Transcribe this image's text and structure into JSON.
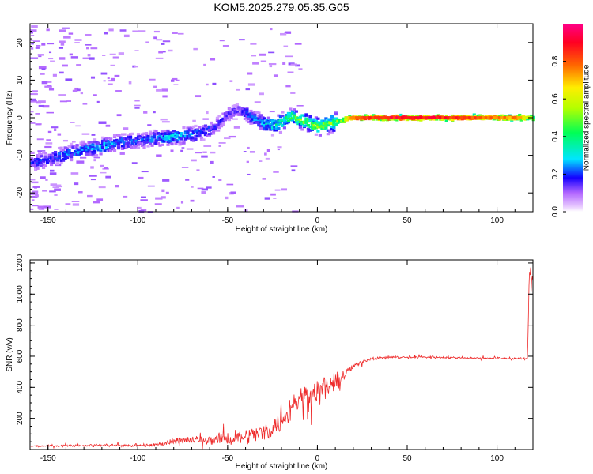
{
  "title": "KOM5.2025.279.05.35.G05",
  "chart_data": [
    {
      "type": "heatmap",
      "xlabel": "Height of straight line (km)",
      "ylabel": "Frequency (Hz)",
      "xlim": [
        -160,
        120
      ],
      "ylim": [
        -25,
        25
      ],
      "xticks": [
        -150,
        -100,
        -50,
        0,
        50,
        100
      ],
      "yticks": [
        -20,
        -10,
        0,
        10,
        20
      ],
      "colorbar": {
        "label": "Normalized spectral amplitude",
        "range": [
          0,
          1
        ],
        "ticks": [
          0.0,
          0.2,
          0.4,
          0.6,
          0.8
        ],
        "tick_labels": [
          "0.0",
          "0.2",
          "0.4",
          "0.6",
          "0.8"
        ]
      },
      "ridge": {
        "x": [
          -160,
          -150,
          -140,
          -130,
          -120,
          -110,
          -100,
          -90,
          -80,
          -70,
          -60,
          -50,
          -45,
          -40,
          -35,
          -30,
          -25,
          -20,
          -15,
          -10,
          -5,
          0,
          5,
          10,
          15,
          20,
          30,
          40,
          50,
          60,
          70,
          80,
          90,
          100,
          110,
          120
        ],
        "frequency": [
          -12,
          -11,
          -9.5,
          -8.5,
          -7.5,
          -6.5,
          -6,
          -5.5,
          -5,
          -4.5,
          -3,
          1,
          2,
          1,
          -0.5,
          -1.5,
          -2,
          -1,
          0.5,
          -0.5,
          -1.5,
          -2.3,
          -1.8,
          -1,
          -0.5,
          0,
          0,
          0,
          0,
          0,
          0,
          0,
          0,
          0,
          0,
          0
        ],
        "amplitude": [
          0.2,
          0.2,
          0.25,
          0.25,
          0.28,
          0.25,
          0.2,
          0.25,
          0.3,
          0.25,
          0.2,
          0.15,
          0.15,
          0.2,
          0.25,
          0.3,
          0.35,
          0.4,
          0.45,
          0.5,
          0.5,
          0.5,
          0.5,
          0.55,
          0.6,
          0.8,
          0.85,
          0.9,
          0.9,
          0.9,
          0.9,
          0.85,
          0.8,
          0.8,
          0.75,
          0.5
        ]
      }
    },
    {
      "type": "line",
      "xlabel": "Height of straight line (km)",
      "ylabel": "SNR (v/v)",
      "xlim": [
        -160,
        120
      ],
      "ylim": [
        0,
        1220
      ],
      "xticks": [
        -150,
        -100,
        -50,
        0,
        50,
        100
      ],
      "yticks": [
        200,
        400,
        600,
        800,
        1000,
        1200
      ],
      "series": [
        {
          "name": "SNR",
          "color": "#ee2b2b",
          "x": [
            -160,
            -140,
            -120,
            -100,
            -90,
            -85,
            -80,
            -70,
            -60,
            -50,
            -40,
            -30,
            -20,
            -15,
            -10,
            -5,
            0,
            5,
            10,
            15,
            20,
            25,
            30,
            40,
            50,
            60,
            80,
            100,
            110,
            117,
            118,
            119,
            120
          ],
          "mean": [
            22,
            25,
            28,
            25,
            30,
            40,
            55,
            60,
            62,
            70,
            85,
            110,
            180,
            260,
            330,
            360,
            380,
            400,
            430,
            480,
            530,
            565,
            585,
            595,
            592,
            595,
            590,
            588,
            585,
            585,
            1150,
            1100,
            1080
          ],
          "noise": [
            10,
            10,
            12,
            12,
            15,
            20,
            35,
            40,
            45,
            60,
            70,
            90,
            110,
            120,
            120,
            120,
            140,
            110,
            80,
            45,
            25,
            20,
            15,
            12,
            12,
            12,
            10,
            10,
            10,
            10,
            60,
            60,
            60
          ]
        }
      ]
    }
  ]
}
